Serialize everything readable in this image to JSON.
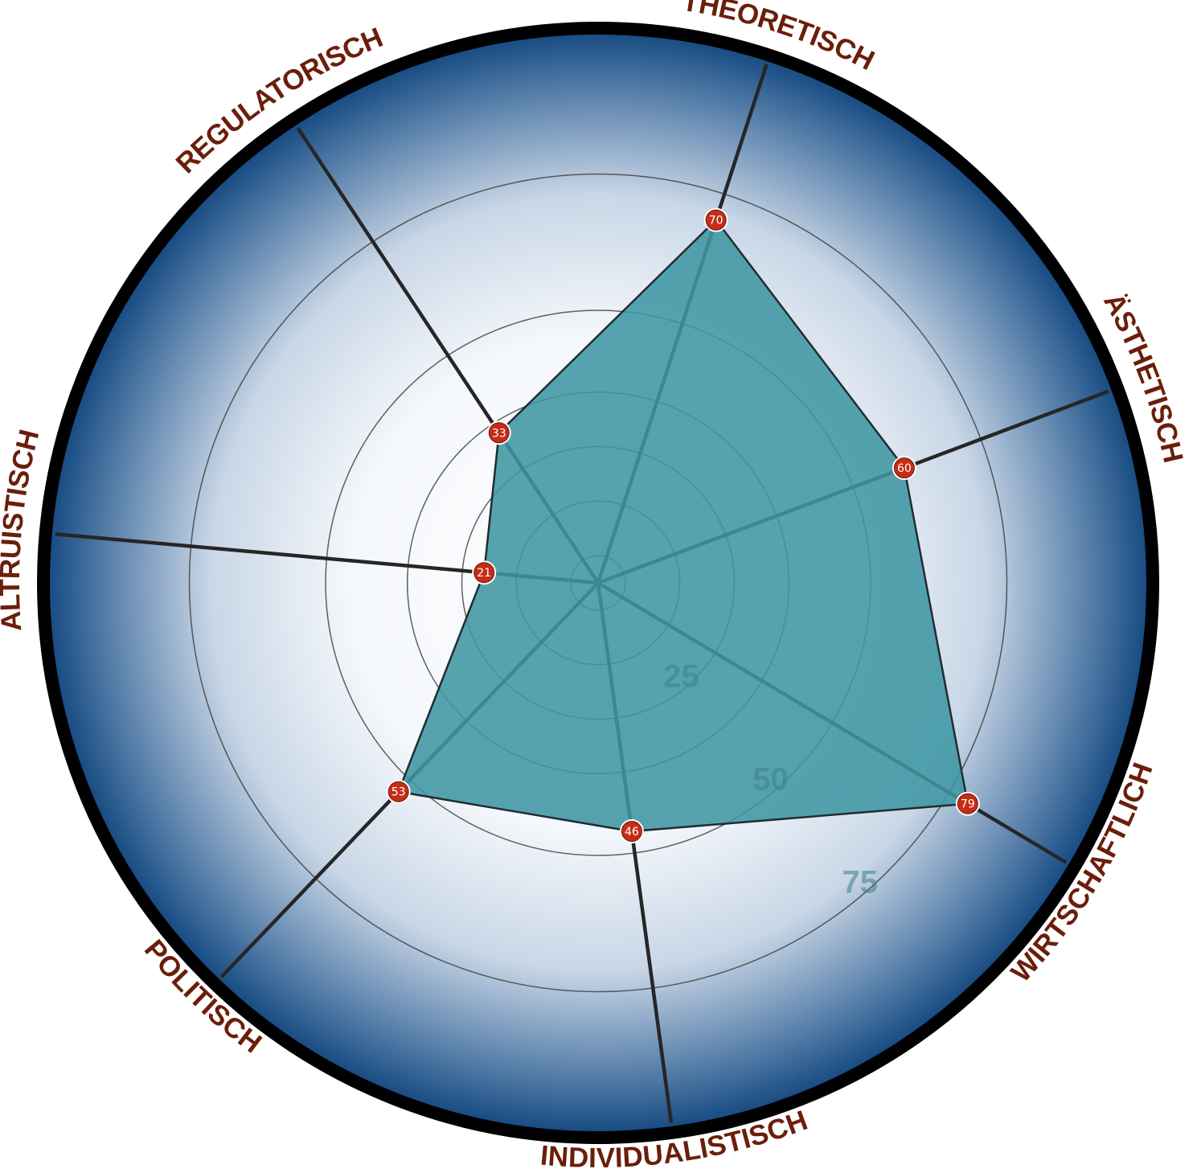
{
  "chart_data": {
    "type": "radar",
    "axes": [
      "THEORETISCH",
      "ÄSTHETISCH",
      "WIRTSCHAFTLICH",
      "INDIVIDUALISTISCH",
      "POLITISCH",
      "ALTRUISTISCH",
      "REGULATORISCH"
    ],
    "series": [
      {
        "values": [
          70,
          60,
          79,
          46,
          53,
          21,
          33
        ]
      }
    ],
    "ring_values": [
      5,
      15,
      25,
      35,
      50,
      75,
      100
    ],
    "ring_labels": [
      "25",
      "50",
      "75"
    ],
    "range": [
      0,
      100
    ],
    "grid": true,
    "legend": "none"
  },
  "colors": {
    "fill": "#3f96a3",
    "outline": "#1f2d33",
    "marker": "#c42d18",
    "axis_label": "#6b1e0a",
    "gradient_edge": "#1a4f86",
    "frame": "#000000"
  }
}
